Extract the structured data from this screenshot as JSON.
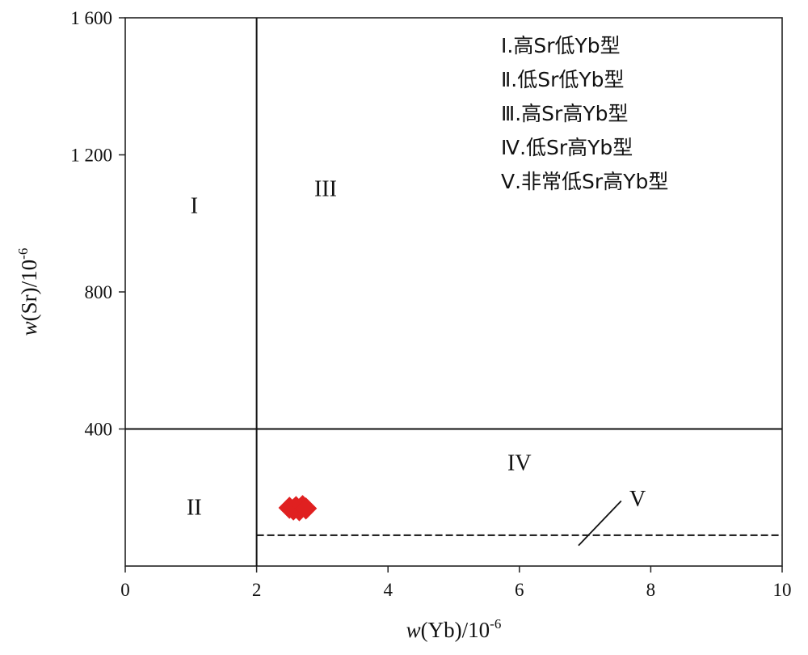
{
  "chart_data": {
    "type": "scatter",
    "xlabel": "w(Yb)/10-6",
    "ylabel": "w(Sr)/10-6",
    "xlim": [
      0,
      10
    ],
    "ylim": [
      0,
      1600
    ],
    "x_ticks": [
      0,
      2,
      4,
      6,
      8,
      10
    ],
    "y_ticks": [
      400,
      800,
      1200,
      1600
    ],
    "x_tick_labels": [
      "0",
      "2",
      "4",
      "6",
      "8",
      "10"
    ],
    "y_tick_labels": [
      "400",
      "800",
      "1 200",
      "1 600"
    ],
    "grid": false,
    "marker_color": "#e02020",
    "marker": "diamond",
    "points": [
      {
        "x": 2.5,
        "y": 170
      },
      {
        "x": 2.56,
        "y": 165
      },
      {
        "x": 2.6,
        "y": 172
      },
      {
        "x": 2.65,
        "y": 163
      },
      {
        "x": 2.7,
        "y": 175
      },
      {
        "x": 2.75,
        "y": 168
      }
    ],
    "boundaries": [
      {
        "kind": "vertical",
        "x": 2,
        "style": "solid"
      },
      {
        "kind": "horizontal",
        "y": 400,
        "x_from": 0,
        "x_to": 10,
        "style": "solid"
      },
      {
        "kind": "horizontal",
        "y": 90,
        "x_from": 2,
        "x_to": 10,
        "style": "dashed"
      }
    ],
    "region_labels": [
      {
        "id": "I",
        "text": "I",
        "x": 1.05,
        "y": 1030
      },
      {
        "id": "II",
        "text": "II",
        "x": 1.05,
        "y": 150
      },
      {
        "id": "III",
        "text": "III",
        "x": 3.05,
        "y": 1080
      },
      {
        "id": "IV",
        "text": "IV",
        "x": 6.0,
        "y": 280
      },
      {
        "id": "V",
        "text": "V",
        "x": 7.8,
        "y": 175
      }
    ],
    "leader_line": {
      "from": [
        6.9,
        60
      ],
      "to": [
        7.55,
        190
      ]
    },
    "legend": {
      "placement": "top-right",
      "entries": [
        "Ⅰ.高Sr低Yb型",
        "Ⅱ.低Sr低Yb型",
        "Ⅲ.高Sr高Yb型",
        "Ⅳ.低Sr高Yb型",
        "Ⅴ.非常低Sr高Yb型"
      ]
    }
  }
}
